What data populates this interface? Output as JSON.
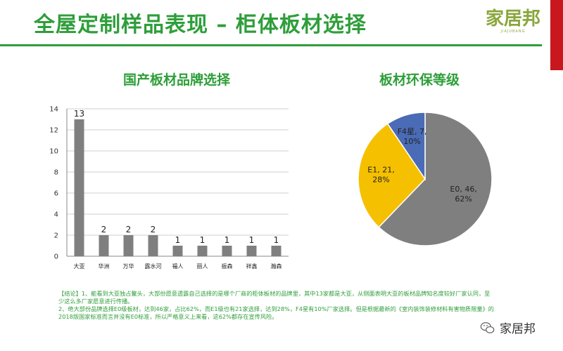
{
  "slide": {
    "title": "全屋定制样品表现 – 柜体板材选择",
    "logo_text": "家居邦",
    "logo_sub": "JIAJUBANG",
    "watermark": "家居邦"
  },
  "colors": {
    "accent": "#2e9e3a",
    "bar": "#7f7f7f",
    "pie_e0": "#7f7f7f",
    "pie_e1": "#f5c000",
    "pie_f4": "#4a6bb5",
    "red_bar": "#c9171e"
  },
  "chart_data": [
    {
      "type": "bar",
      "title": "国产板材品牌选择",
      "categories": [
        "大亚",
        "华洲",
        "万华",
        "露水河",
        "福人",
        "丽人",
        "振森",
        "祥鑫",
        "瀚森"
      ],
      "values": [
        13,
        2,
        2,
        2,
        1,
        1,
        1,
        1,
        1
      ],
      "data_labels": [
        "13",
        "2",
        "2",
        "2",
        "1",
        "1",
        "1",
        "1",
        "1"
      ],
      "ylim": [
        0,
        14
      ],
      "yticks": [
        "0",
        "2",
        "4",
        "6",
        "8",
        "10",
        "12",
        "14"
      ],
      "grid": true
    },
    {
      "type": "pie",
      "title": "板材环保等级",
      "slices": [
        {
          "label": "E0",
          "value": 46,
          "percent": 62,
          "text": [
            "E0, 46,",
            "62%"
          ]
        },
        {
          "label": "E1",
          "value": 21,
          "percent": 28,
          "text": [
            "E1, 21,",
            "28%"
          ]
        },
        {
          "label": "F4星",
          "value": 7,
          "percent": 10,
          "text": [
            "F4星, 7,",
            "10%"
          ]
        }
      ]
    }
  ],
  "notes": {
    "p1": "【结论】1、能看到大亚独占鳌头，大部份愿意透露自己选择的是哪个厂商的柜体板材的品牌里，其中13家都是大亚，从侧面表明大亚的板材品牌知名度较好厂家认同，至少这么多厂家愿意进行传播。",
    "p2": "2、绝大部份品牌选择E0级板材，达到46家，占比62%，而E1级也有21家选择，达到28%，F4星有10%厂家选择。但是根据最新的《室内装饰装修材料有害物质限量》的2018版国家标准而言并没有E0标准，所以严格意义上来看，这62%都存在宣传风险。"
  }
}
